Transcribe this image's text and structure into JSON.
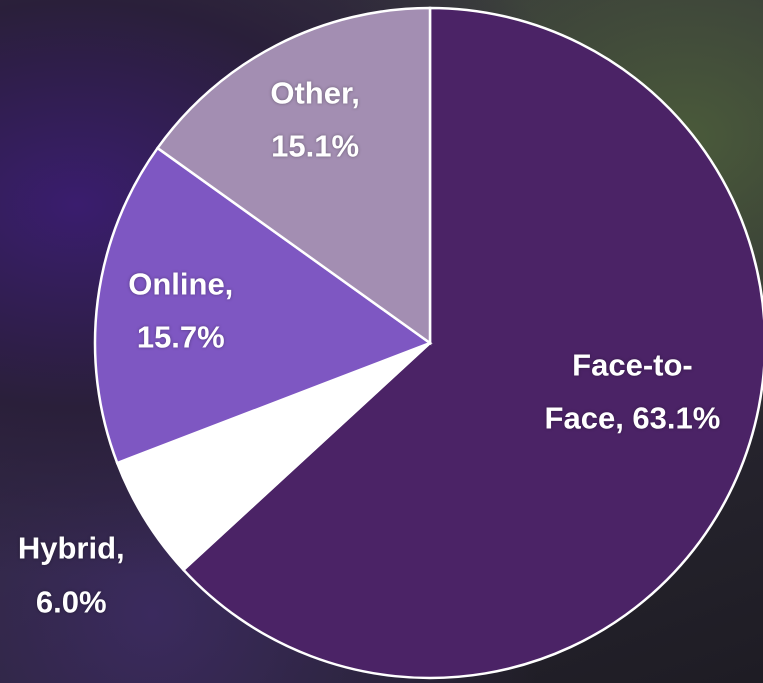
{
  "chart_data": {
    "type": "pie",
    "values": [
      63.1,
      6.0,
      15.7,
      15.1
    ],
    "value_labels": [
      "Face-to-Face, 63.1%",
      "Hybrid, 6.0%",
      "Online, 15.7%",
      "Other, 15.1%"
    ],
    "colors": [
      "#4b2366",
      "#ffffff",
      "#7e57c2",
      "#a38eb2"
    ]
  }
}
